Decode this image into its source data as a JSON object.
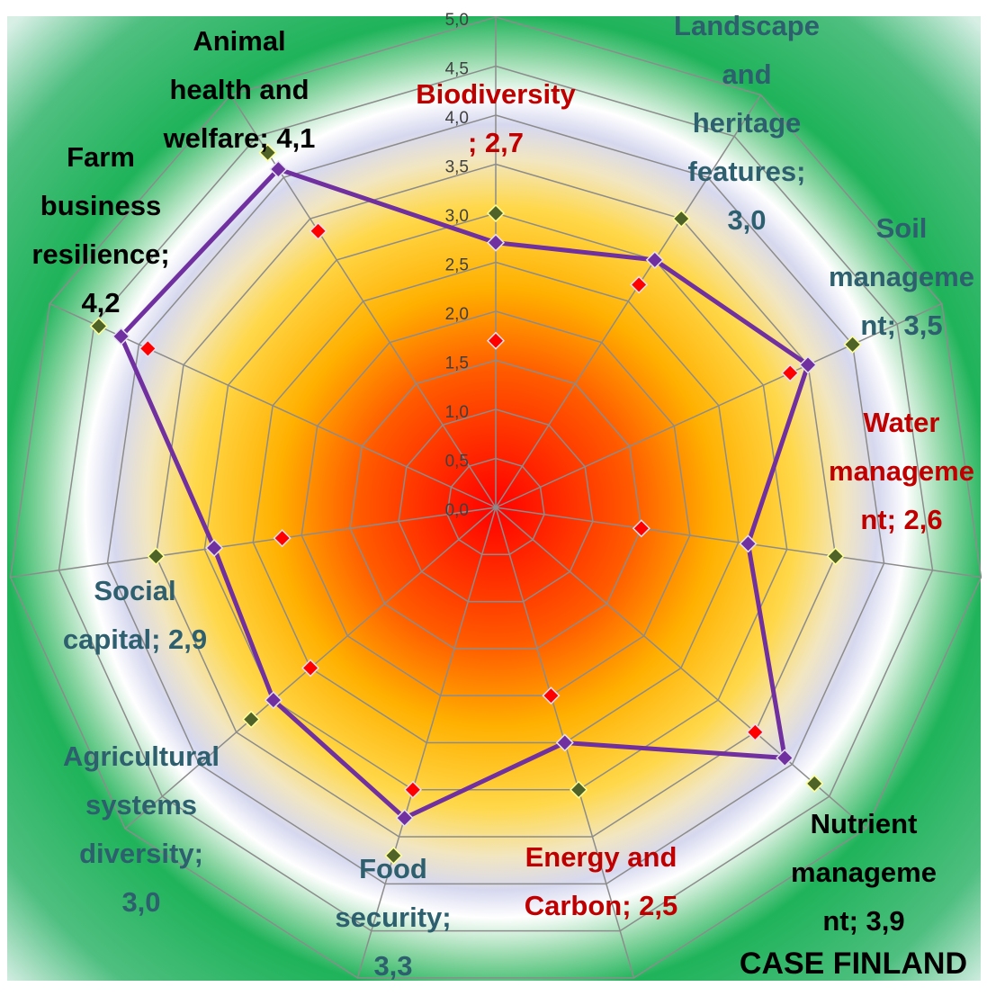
{
  "chart_data": {
    "type": "radar",
    "title": "CASE FINLAND",
    "categories": [
      "Biodiversity; 2,7",
      "Landscape and heritage features; 3,0",
      "Soil management; 3,5",
      "Water management; 2,6",
      "Nutrient management; 3,9",
      "Energy and Carbon; 2,5",
      "Food security; 3,3",
      "Agricultural systems diversity; 3,0",
      "Social capital; 2,9",
      "Farm business resilience; 4,2",
      "Animal health and welfare; 4,1"
    ],
    "label_colors": [
      "#c00000",
      "#2e5f6e",
      "#2e5f6e",
      "#c00000",
      "#000000",
      "#c00000",
      "#2e5f6e",
      "#2e5f6e",
      "#2e5f6e",
      "#000000",
      "#000000"
    ],
    "series": [
      {
        "color": "#7030a0",
        "line": true,
        "values": [
          2.7,
          3.0,
          3.5,
          2.6,
          3.9,
          2.5,
          3.3,
          3.0,
          2.9,
          4.2,
          4.1
        ]
      },
      {
        "color": "#ff0000",
        "line": false,
        "values": [
          1.7,
          2.7,
          3.3,
          1.5,
          3.5,
          2.0,
          3.0,
          2.5,
          2.2,
          3.9,
          3.35
        ]
      },
      {
        "color": "#4f6228",
        "line": false,
        "values": [
          3.0,
          3.5,
          4.0,
          3.5,
          4.3,
          3.0,
          3.7,
          3.3,
          3.5,
          4.45,
          4.3
        ]
      }
    ],
    "rlim": [
      0,
      5
    ],
    "rticks": [
      {
        "value": 0,
        "label": "0,0"
      },
      {
        "value": 0.5,
        "label": "0,5"
      },
      {
        "value": 1,
        "label": "1,0"
      },
      {
        "value": 1.5,
        "label": "1,5"
      },
      {
        "value": 2,
        "label": "2,0"
      },
      {
        "value": 2.5,
        "label": "2,5"
      },
      {
        "value": 3,
        "label": "3,0"
      },
      {
        "value": 3.5,
        "label": "3,5"
      },
      {
        "value": 4,
        "label": "4,0"
      },
      {
        "value": 4.5,
        "label": "4,5"
      },
      {
        "value": 5,
        "label": "5,0"
      }
    ],
    "grid": true
  }
}
